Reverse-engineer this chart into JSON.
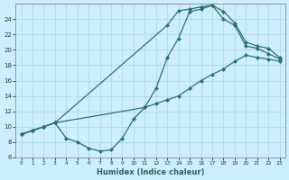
{
  "title": "",
  "xlabel": "Humidex (Indice chaleur)",
  "bg_color": "#cceeff",
  "grid_color": "#b0d8e8",
  "line_color": "#2d7070",
  "marker_color": "#2d7070",
  "xlim": [
    -0.5,
    23.5
  ],
  "ylim": [
    6,
    26
  ],
  "xticks": [
    0,
    1,
    2,
    3,
    4,
    5,
    6,
    7,
    8,
    9,
    10,
    11,
    12,
    13,
    14,
    15,
    16,
    17,
    18,
    19,
    20,
    21,
    22,
    23
  ],
  "yticks": [
    6,
    8,
    10,
    12,
    14,
    16,
    18,
    20,
    22,
    24
  ],
  "curve_bottom_x": [
    0,
    1,
    2,
    3,
    4,
    5,
    6,
    7,
    8,
    9,
    10,
    11,
    12,
    13,
    14,
    15,
    16,
    17,
    18,
    19,
    20,
    21,
    22,
    23
  ],
  "curve_bottom_y": [
    9.0,
    9.5,
    10.0,
    10.5,
    8.5,
    8.0,
    7.2,
    6.8,
    7.0,
    8.5,
    11.0,
    12.5,
    13.0,
    13.5,
    14.0,
    15.0,
    16.0,
    16.8,
    17.5,
    18.5,
    19.3,
    19.0,
    18.8,
    18.5
  ],
  "curve_mid_x": [
    0,
    1,
    2,
    3,
    11,
    12,
    13,
    14,
    15,
    16,
    17,
    18,
    19,
    20,
    21,
    22,
    23
  ],
  "curve_mid_y": [
    9.0,
    9.5,
    10.0,
    10.5,
    12.5,
    15.0,
    19.0,
    21.5,
    25.0,
    25.3,
    25.8,
    25.0,
    23.5,
    21.0,
    20.5,
    20.2,
    19.0
  ],
  "curve_top_x": [
    0,
    1,
    2,
    3,
    13,
    14,
    15,
    16,
    17,
    18,
    19,
    20,
    21,
    22,
    23
  ],
  "curve_top_y": [
    9.0,
    9.5,
    10.0,
    10.5,
    23.2,
    25.1,
    25.3,
    25.6,
    25.8,
    24.0,
    23.2,
    20.5,
    20.2,
    19.5,
    18.8
  ]
}
